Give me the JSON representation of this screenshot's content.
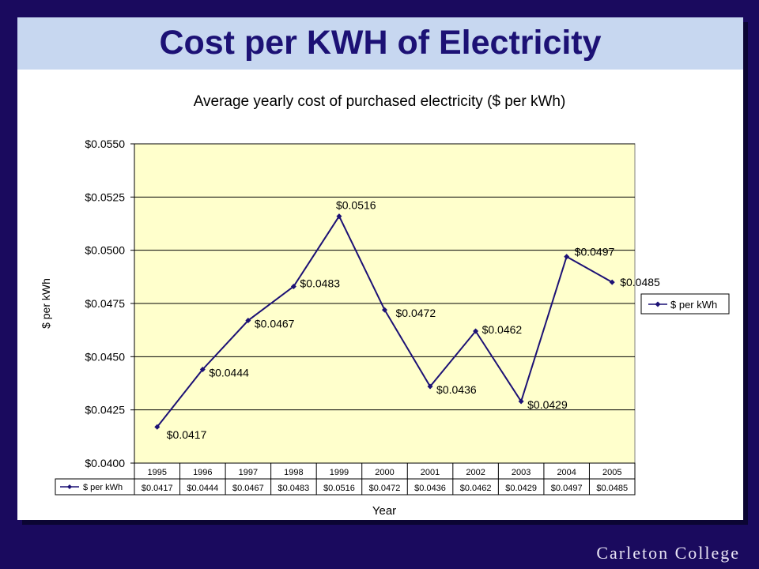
{
  "slide": {
    "title": "Cost per KWH of Electricity",
    "footer": "Carleton College"
  },
  "chart_data": {
    "type": "line",
    "title": "Average yearly cost of purchased electricity ($ per kWh)",
    "xlabel": "Year",
    "ylabel": "$ per kWh",
    "ylim": [
      0.04,
      0.055
    ],
    "y_ticks": [
      "$0.0400",
      "$0.0425",
      "$0.0450",
      "$0.0475",
      "$0.0500",
      "$0.0525",
      "$0.0550"
    ],
    "categories": [
      "1995",
      "1996",
      "1997",
      "1998",
      "1999",
      "2000",
      "2001",
      "2002",
      "2003",
      "2004",
      "2005"
    ],
    "series": [
      {
        "name": "$ per kWh",
        "values": [
          0.0417,
          0.0444,
          0.0467,
          0.0483,
          0.0516,
          0.0472,
          0.0436,
          0.0462,
          0.0429,
          0.0497,
          0.0485
        ],
        "labels": [
          "$0.0417",
          "$0.0444",
          "$0.0467",
          "$0.0483",
          "$0.0516",
          "$0.0472",
          "$0.0436",
          "$0.0462",
          "$0.0429",
          "$0.0497",
          "$0.0485"
        ]
      }
    ],
    "grid": true,
    "legend": "right",
    "data_table": true,
    "colors": {
      "series": "#1c1175",
      "plot_bg": "#ffffcc",
      "gridline": "#000000"
    }
  }
}
